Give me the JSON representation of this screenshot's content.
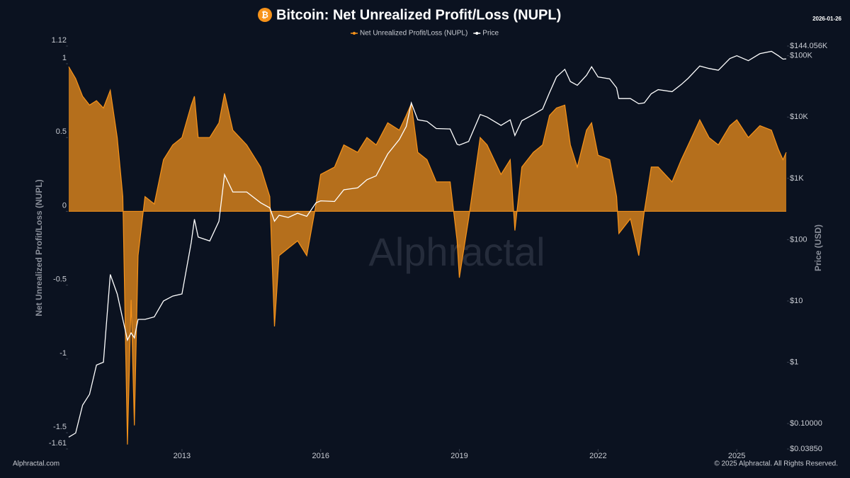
{
  "chart_data": {
    "type": "area-line",
    "title": "Bitcoin: Net Unrealized Profit/Loss (NUPL)",
    "date_label": "2026-01-26",
    "ylabel": "Net Unrealized Profit/Loss (NUPL)",
    "y2label": "Price (USD)",
    "legend": "top",
    "y2log": true,
    "xlim": [
      2010.55,
      2026.07
    ],
    "xticks": [
      2013,
      2016,
      2019,
      2022,
      2025
    ],
    "ylim": [
      -1.61,
      1.12
    ],
    "yticks": [
      1.12,
      1,
      0.5,
      0,
      -0.5,
      -1,
      -1.5,
      -1.61
    ],
    "y2lim": [
      0.0385,
      144056
    ],
    "y2ticks": [
      {
        "value": 144056,
        "label": "$144.056K"
      },
      {
        "value": 100000,
        "label": "$100K"
      },
      {
        "value": 10000,
        "label": "$10K"
      },
      {
        "value": 1000,
        "label": "$1K"
      },
      {
        "value": 100,
        "label": "$100"
      },
      {
        "value": 10,
        "label": "$10"
      },
      {
        "value": 1,
        "label": "$1"
      },
      {
        "value": 0.1,
        "label": "$0.10000"
      },
      {
        "value": 0.0385,
        "label": "$0.03850"
      }
    ],
    "x": [
      2010.55,
      2010.7,
      2010.85,
      2011.0,
      2011.15,
      2011.3,
      2011.45,
      2011.6,
      2011.72,
      2011.82,
      2011.9,
      2011.97,
      2012.05,
      2012.2,
      2012.4,
      2012.6,
      2012.8,
      2013.0,
      2013.2,
      2013.27,
      2013.35,
      2013.6,
      2013.8,
      2013.92,
      2014.1,
      2014.4,
      2014.7,
      2014.9,
      2015.0,
      2015.1,
      2015.3,
      2015.5,
      2015.7,
      2015.9,
      2016.0,
      2016.3,
      2016.5,
      2016.8,
      2017.0,
      2017.2,
      2017.45,
      2017.7,
      2017.85,
      2017.96,
      2018.1,
      2018.3,
      2018.5,
      2018.8,
      2018.95,
      2019.0,
      2019.2,
      2019.45,
      2019.6,
      2019.9,
      2020.1,
      2020.2,
      2020.35,
      2020.6,
      2020.8,
      2020.95,
      2021.1,
      2021.28,
      2021.4,
      2021.55,
      2021.75,
      2021.86,
      2022.0,
      2022.25,
      2022.4,
      2022.45,
      2022.7,
      2022.88,
      2023.0,
      2023.15,
      2023.3,
      2023.6,
      2023.8,
      2023.95,
      2024.2,
      2024.4,
      2024.6,
      2024.85,
      2025.0,
      2025.25,
      2025.5,
      2025.75,
      2025.9,
      2026.0,
      2026.07
    ],
    "series": [
      {
        "name": "Net Unrealized Profit/Loss (NUPL)",
        "color": "#f7931a",
        "values": [
          0.98,
          0.9,
          0.78,
          0.72,
          0.75,
          0.7,
          0.82,
          0.5,
          0.1,
          -1.58,
          -0.6,
          -1.45,
          -0.3,
          0.1,
          0.05,
          0.35,
          0.45,
          0.5,
          0.72,
          0.78,
          0.5,
          0.5,
          0.6,
          0.8,
          0.55,
          0.45,
          0.3,
          0.1,
          -0.78,
          -0.3,
          -0.25,
          -0.2,
          -0.3,
          0.05,
          0.25,
          0.3,
          0.45,
          0.4,
          0.5,
          0.45,
          0.6,
          0.55,
          0.65,
          0.73,
          0.4,
          0.35,
          0.2,
          0.2,
          -0.2,
          -0.45,
          -0.05,
          0.5,
          0.45,
          0.25,
          0.35,
          -0.13,
          0.3,
          0.4,
          0.45,
          0.65,
          0.7,
          0.72,
          0.45,
          0.3,
          0.55,
          0.6,
          0.38,
          0.35,
          0.1,
          -0.15,
          -0.05,
          -0.3,
          0.0,
          0.3,
          0.3,
          0.2,
          0.35,
          0.45,
          0.62,
          0.5,
          0.45,
          0.58,
          0.62,
          0.5,
          0.58,
          0.55,
          0.42,
          0.35,
          0.4
        ]
      },
      {
        "name": "Price",
        "color": "#ffffff",
        "axis": "y2",
        "values": [
          0.06,
          0.07,
          0.2,
          0.3,
          0.9,
          1,
          27,
          13,
          5,
          2.3,
          3,
          2.5,
          5,
          5,
          5.5,
          10,
          12,
          13,
          90,
          215,
          110,
          95,
          200,
          1150,
          600,
          600,
          400,
          330,
          200,
          250,
          230,
          270,
          240,
          400,
          430,
          420,
          650,
          700,
          950,
          1100,
          2500,
          4300,
          7000,
          17000,
          9000,
          8500,
          6500,
          6400,
          3600,
          3500,
          4000,
          11000,
          10000,
          7300,
          9000,
          5000,
          8700,
          11000,
          13500,
          25000,
          45000,
          60000,
          38000,
          33000,
          48000,
          66000,
          45000,
          42000,
          30000,
          20000,
          20000,
          16500,
          17000,
          24000,
          28000,
          26000,
          34000,
          43000,
          68000,
          62000,
          58000,
          90000,
          100000,
          83000,
          108000,
          118000,
          100000,
          88000,
          89000
        ]
      }
    ]
  },
  "watermark": "Alphractal",
  "footer": {
    "left": "Alphractal.com",
    "right": "© 2025 Alphractal. All Rights Reserved."
  }
}
